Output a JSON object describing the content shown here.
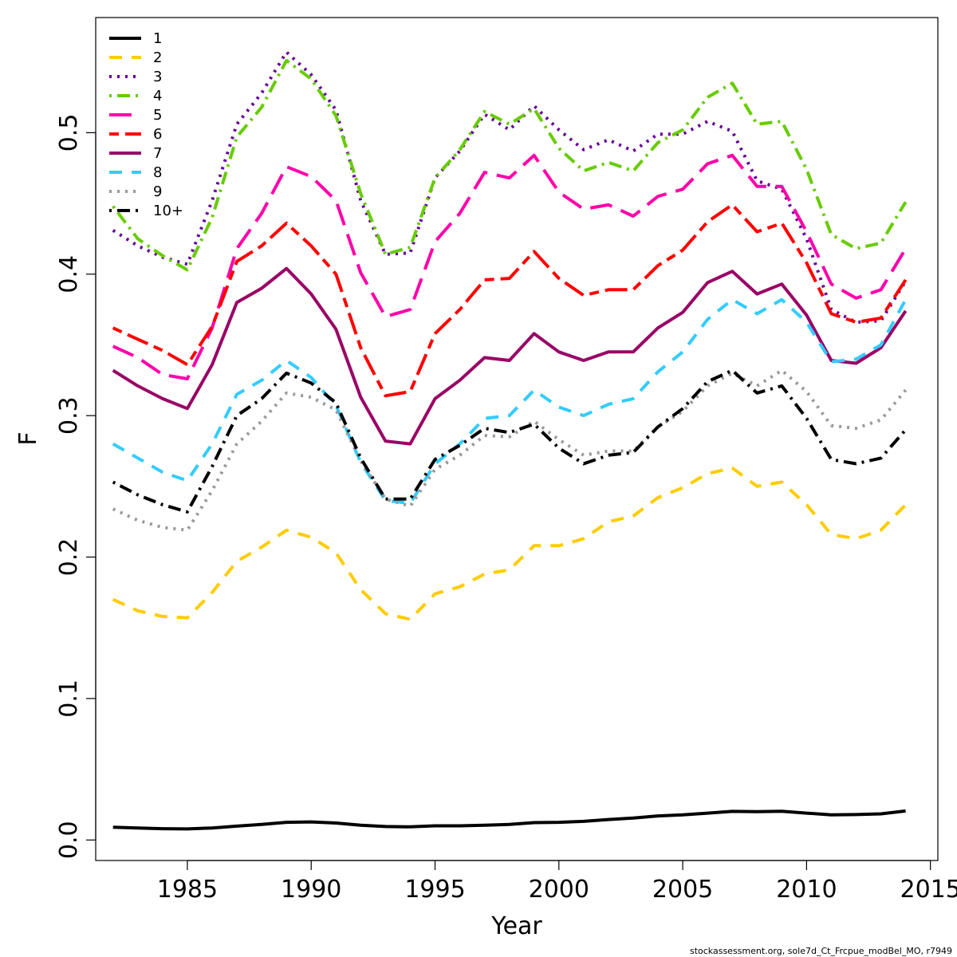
{
  "chart_data": {
    "type": "line",
    "xlabel": "Year",
    "ylabel": "F",
    "xlim": [
      1981.3,
      2015.3
    ],
    "ylim": [
      -0.0145,
      0.5814
    ],
    "x_ticks": [
      1985,
      1990,
      1995,
      2000,
      2005,
      2010,
      2015
    ],
    "y_ticks": [
      0.0,
      0.1,
      0.2,
      0.3,
      0.4,
      0.5
    ],
    "x_tick_labels": [
      "1985",
      "1990",
      "1995",
      "2000",
      "2005",
      "2010",
      "2015"
    ],
    "y_tick_labels": [
      "0.0",
      "0.1",
      "0.2",
      "0.3",
      "0.4",
      "0.5"
    ],
    "legend_position": "top-left",
    "grid": false,
    "footer": "stockassessment.org, sole7d_Ct_Frcpue_modBel_MO, r7949",
    "x": [
      1982,
      1983,
      1984,
      1985,
      1986,
      1987,
      1988,
      1989,
      1990,
      1991,
      1992,
      1993,
      1994,
      1995,
      1996,
      1997,
      1998,
      1999,
      2000,
      2001,
      2002,
      2003,
      2004,
      2005,
      2006,
      2007,
      2008,
      2009,
      2010,
      2011,
      2012,
      2013,
      2014
    ],
    "series": [
      {
        "name": "1",
        "color": "#000000",
        "dash": "solid",
        "values": [
          0.009,
          0.0085,
          0.008,
          0.0078,
          0.0085,
          0.0098,
          0.011,
          0.0125,
          0.0128,
          0.012,
          0.0105,
          0.0095,
          0.0093,
          0.01,
          0.01,
          0.0105,
          0.011,
          0.0123,
          0.0125,
          0.0132,
          0.0145,
          0.0155,
          0.017,
          0.0178,
          0.019,
          0.0202,
          0.02,
          0.0203,
          0.019,
          0.0178,
          0.018,
          0.0185,
          0.0205
        ]
      },
      {
        "name": "2",
        "color": "#ffcc00",
        "dash": "dashed",
        "values": [
          0.17,
          0.162,
          0.158,
          0.157,
          0.175,
          0.197,
          0.207,
          0.219,
          0.214,
          0.203,
          0.177,
          0.16,
          0.156,
          0.174,
          0.179,
          0.188,
          0.191,
          0.208,
          0.208,
          0.213,
          0.225,
          0.229,
          0.242,
          0.249,
          0.259,
          0.263,
          0.25,
          0.253,
          0.237,
          0.216,
          0.213,
          0.219,
          0.237
        ]
      },
      {
        "name": "3",
        "color": "#660099",
        "dash": "dotted",
        "values": [
          0.431,
          0.42,
          0.412,
          0.407,
          0.452,
          0.506,
          0.528,
          0.557,
          0.541,
          0.516,
          0.452,
          0.414,
          0.415,
          0.468,
          0.487,
          0.513,
          0.502,
          0.519,
          0.502,
          0.488,
          0.495,
          0.487,
          0.499,
          0.499,
          0.508,
          0.501,
          0.466,
          0.46,
          0.425,
          0.375,
          0.366,
          0.367,
          0.395
        ]
      },
      {
        "name": "4",
        "color": "#66cc00",
        "dash": "dotdash",
        "values": [
          0.448,
          0.425,
          0.413,
          0.403,
          0.44,
          0.497,
          0.518,
          0.551,
          0.538,
          0.512,
          0.457,
          0.414,
          0.419,
          0.468,
          0.488,
          0.515,
          0.506,
          0.517,
          0.489,
          0.473,
          0.479,
          0.473,
          0.493,
          0.502,
          0.525,
          0.535,
          0.506,
          0.508,
          0.474,
          0.428,
          0.418,
          0.422,
          0.451
        ]
      },
      {
        "name": "5",
        "color": "#ff00aa",
        "dash": "longdash",
        "values": [
          0.349,
          0.341,
          0.329,
          0.326,
          0.362,
          0.418,
          0.443,
          0.476,
          0.469,
          0.452,
          0.401,
          0.37,
          0.375,
          0.423,
          0.443,
          0.472,
          0.468,
          0.484,
          0.458,
          0.446,
          0.449,
          0.441,
          0.455,
          0.46,
          0.478,
          0.484,
          0.462,
          0.462,
          0.43,
          0.393,
          0.383,
          0.389,
          0.418
        ]
      },
      {
        "name": "6",
        "color": "#ff0000",
        "dash": "twodash",
        "values": [
          0.362,
          0.354,
          0.346,
          0.336,
          0.363,
          0.409,
          0.42,
          0.436,
          0.42,
          0.4,
          0.348,
          0.314,
          0.317,
          0.358,
          0.375,
          0.396,
          0.397,
          0.416,
          0.397,
          0.385,
          0.389,
          0.389,
          0.406,
          0.417,
          0.437,
          0.449,
          0.43,
          0.436,
          0.408,
          0.372,
          0.366,
          0.369,
          0.396
        ]
      },
      {
        "name": "7",
        "color": "#990066",
        "dash": "solid",
        "values": [
          0.332,
          0.321,
          0.312,
          0.305,
          0.336,
          0.38,
          0.39,
          0.404,
          0.386,
          0.361,
          0.313,
          0.282,
          0.28,
          0.312,
          0.325,
          0.341,
          0.339,
          0.358,
          0.345,
          0.339,
          0.345,
          0.345,
          0.362,
          0.373,
          0.394,
          0.402,
          0.386,
          0.393,
          0.371,
          0.339,
          0.337,
          0.348,
          0.374
        ]
      },
      {
        "name": "8",
        "color": "#33ccff",
        "dash": "dashed",
        "values": [
          0.28,
          0.27,
          0.26,
          0.254,
          0.28,
          0.315,
          0.325,
          0.339,
          0.327,
          0.307,
          0.267,
          0.24,
          0.238,
          0.266,
          0.28,
          0.298,
          0.3,
          0.318,
          0.306,
          0.3,
          0.308,
          0.312,
          0.331,
          0.345,
          0.368,
          0.382,
          0.372,
          0.382,
          0.366,
          0.338,
          0.34,
          0.35,
          0.382
        ]
      },
      {
        "name": "9",
        "color": "#999999",
        "dash": "dotted",
        "values": [
          0.234,
          0.226,
          0.221,
          0.219,
          0.247,
          0.28,
          0.296,
          0.316,
          0.313,
          0.304,
          0.268,
          0.241,
          0.236,
          0.262,
          0.272,
          0.286,
          0.285,
          0.296,
          0.283,
          0.272,
          0.275,
          0.275,
          0.292,
          0.303,
          0.321,
          0.33,
          0.321,
          0.332,
          0.317,
          0.293,
          0.291,
          0.297,
          0.318
        ]
      },
      {
        "name": "10+",
        "color": "#000000",
        "dash": "dotdash",
        "values": [
          0.253,
          0.244,
          0.237,
          0.232,
          0.264,
          0.3,
          0.312,
          0.33,
          0.323,
          0.309,
          0.27,
          0.241,
          0.241,
          0.269,
          0.279,
          0.291,
          0.288,
          0.294,
          0.277,
          0.266,
          0.272,
          0.274,
          0.292,
          0.305,
          0.324,
          0.332,
          0.316,
          0.321,
          0.298,
          0.269,
          0.266,
          0.27,
          0.29
        ]
      }
    ]
  }
}
